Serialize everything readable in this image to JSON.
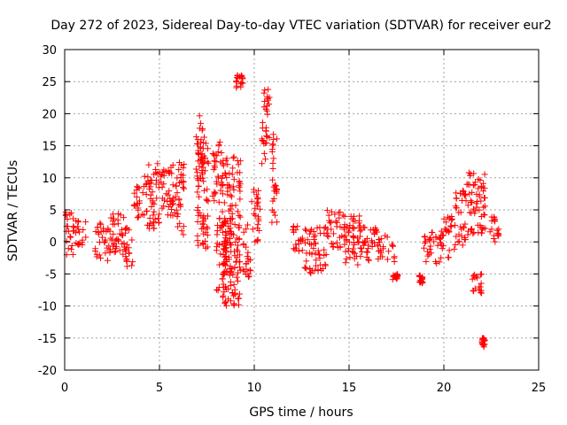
{
  "chart_data": {
    "type": "scatter",
    "title": "Day 272 of 2023, Sidereal Day-to-day VTEC variation (SDTVAR) for receiver eur2",
    "xlabel": "GPS time / hours",
    "ylabel": "SDTVAR / TECUs",
    "xlim": [
      0,
      25
    ],
    "ylim": [
      -20,
      30
    ],
    "x_ticks": [
      0,
      5,
      10,
      15,
      20,
      25
    ],
    "y_ticks": [
      -20,
      -15,
      -10,
      -5,
      0,
      5,
      10,
      15,
      20,
      25,
      30
    ],
    "x_tick_labels": [
      "0",
      "5",
      "10",
      "15",
      "20",
      "25"
    ],
    "y_tick_labels": [
      "-20",
      "-15",
      "-10",
      "-5",
      "0",
      "5",
      "10",
      "15",
      "20",
      "25",
      "30"
    ],
    "grid": true,
    "marker": "+",
    "color": "#ff0000",
    "clusters": [
      {
        "x": [
          0.0,
          0.5
        ],
        "y": [
          -2.5,
          5.0
        ]
      },
      {
        "x": [
          0.5,
          1.2
        ],
        "y": [
          -0.5,
          3.5
        ]
      },
      {
        "x": [
          1.6,
          2.5
        ],
        "y": [
          -3.0,
          3.0
        ]
      },
      {
        "x": [
          2.4,
          3.3
        ],
        "y": [
          -2.5,
          4.5
        ]
      },
      {
        "x": [
          3.2,
          3.6
        ],
        "y": [
          -4.5,
          2.5
        ]
      },
      {
        "x": [
          3.6,
          4.2
        ],
        "y": [
          3.0,
          9.0
        ]
      },
      {
        "x": [
          4.2,
          5.0
        ],
        "y": [
          2.0,
          12.5
        ]
      },
      {
        "x": [
          5.0,
          5.8
        ],
        "y": [
          4.0,
          12.0
        ]
      },
      {
        "x": [
          5.8,
          6.3
        ],
        "y": [
          1.0,
          12.5
        ]
      },
      {
        "x": [
          6.9,
          7.3
        ],
        "y": [
          10.0,
          20.0
        ]
      },
      {
        "x": [
          7.0,
          7.6
        ],
        "y": [
          -1.0,
          17.5
        ]
      },
      {
        "x": [
          7.8,
          8.3
        ],
        "y": [
          6.0,
          16.0
        ]
      },
      {
        "x": [
          8.0,
          8.8
        ],
        "y": [
          -8.0,
          4.0
        ]
      },
      {
        "x": [
          8.3,
          9.3
        ],
        "y": [
          -10.0,
          14.0
        ]
      },
      {
        "x": [
          9.0,
          9.4
        ],
        "y": [
          24.0,
          26.0
        ]
      },
      {
        "x": [
          9.4,
          9.8
        ],
        "y": [
          -6.0,
          3.0
        ]
      },
      {
        "x": [
          9.8,
          10.3
        ],
        "y": [
          0.0,
          9.0
        ]
      },
      {
        "x": [
          10.4,
          10.8
        ],
        "y": [
          12.0,
          25.0
        ]
      },
      {
        "x": [
          10.9,
          11.2
        ],
        "y": [
          3.0,
          18.0
        ]
      },
      {
        "x": [
          12.0,
          12.6
        ],
        "y": [
          -1.5,
          3.0
        ]
      },
      {
        "x": [
          12.6,
          13.1
        ],
        "y": [
          -5.0,
          2.0
        ]
      },
      {
        "x": [
          13.1,
          13.9
        ],
        "y": [
          -4.5,
          2.5
        ]
      },
      {
        "x": [
          13.8,
          14.8
        ],
        "y": [
          -1.0,
          5.0
        ]
      },
      {
        "x": [
          14.8,
          15.6
        ],
        "y": [
          -4.0,
          4.5
        ]
      },
      {
        "x": [
          15.5,
          16.5
        ],
        "y": [
          -3.0,
          3.0
        ]
      },
      {
        "x": [
          16.5,
          17.4
        ],
        "y": [
          -3.5,
          1.0
        ]
      },
      {
        "x": [
          17.3,
          17.6
        ],
        "y": [
          -6.0,
          -5.0
        ]
      },
      {
        "x": [
          18.7,
          18.9
        ],
        "y": [
          -6.5,
          -4.5
        ]
      },
      {
        "x": [
          18.9,
          19.8
        ],
        "y": [
          -3.5,
          1.5
        ]
      },
      {
        "x": [
          19.8,
          20.6
        ],
        "y": [
          -2.5,
          4.0
        ]
      },
      {
        "x": [
          20.6,
          21.2
        ],
        "y": [
          -1.0,
          8.0
        ]
      },
      {
        "x": [
          21.2,
          22.2
        ],
        "y": [
          1.0,
          11.0
        ]
      },
      {
        "x": [
          21.5,
          22.0
        ],
        "y": [
          -8.0,
          -5.0
        ]
      },
      {
        "x": [
          22.0,
          22.2
        ],
        "y": [
          -16.5,
          -15.0
        ]
      },
      {
        "x": [
          22.4,
          22.9
        ],
        "y": [
          0.0,
          4.0
        ]
      }
    ]
  }
}
